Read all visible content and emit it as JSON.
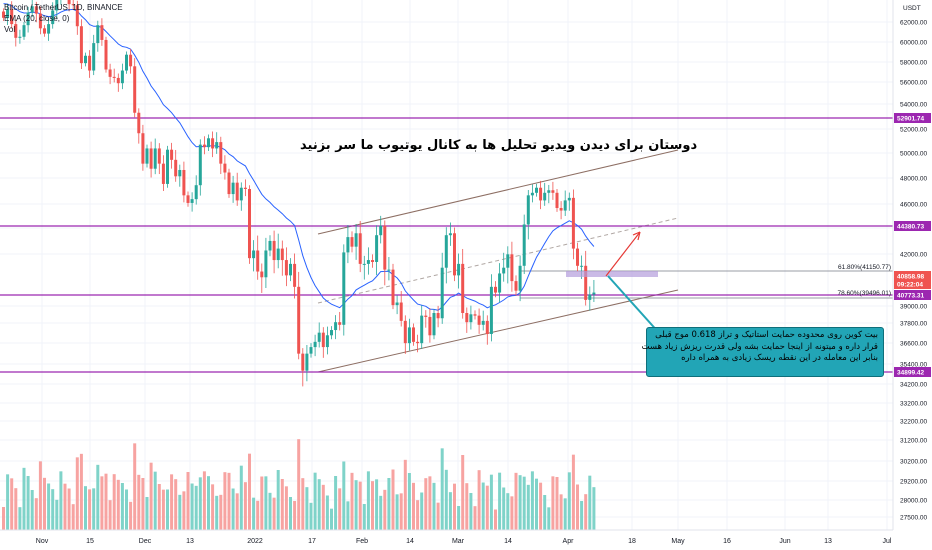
{
  "legend": {
    "symbol": "Bitcoin / TetherUS, 1D, BINANCE",
    "ma": "EMA (20, close, 0)",
    "vol": "Vol"
  },
  "annotation_title": "دوستان برای دیدن ویدیو تحلیل ها به کانال یوتیوب ما سر بزنید",
  "callout": {
    "lines": [
      "بیت کوین روی محدوده حمایت استاتیک و تراز 0.618 موج قبلی",
      "قرار داره و میتونه از اینجا حمایت بشه ولی قدرت ریزش زیاد هست",
      "بنابر این معامله در این نقطه ریسک زیادی به همراه داره"
    ]
  },
  "currency": "USDT",
  "colors": {
    "up": "#26a69a",
    "down": "#ef5350",
    "vol_up": "#7fd3c9",
    "vol_down": "#f7a3a1",
    "level": "#9c27b0",
    "ema": "#2962ff",
    "channel": "#8d6e63",
    "callout": "#22a5b6"
  },
  "chart_data": {
    "type": "candlestick",
    "yaxis_ticks": [
      "62000.00",
      "60000.00",
      "58000.00",
      "56000.00",
      "54000.00",
      "52000.00",
      "50000.00",
      "48000.00",
      "46000.00",
      "44000.00",
      "42000.00",
      "39000.00",
      "37800.00",
      "36600.00",
      "35400.00",
      "34200.00",
      "33200.00",
      "32200.00",
      "31200.00",
      "30200.00",
      "29200.00",
      "28000.00",
      "27500.00"
    ],
    "yaxis_tick_px_note": "",
    "xaxis_ticks": [
      "Nov",
      "15",
      "Dec",
      "13",
      "2022",
      "17",
      "Feb",
      "14",
      "Mar",
      "14",
      "Apr",
      "18",
      "May",
      "16",
      "Jun",
      "13",
      "Jul"
    ],
    "price_labels": [
      {
        "text": "52901.74",
        "color": "#9c27b0"
      },
      {
        "text": "44380.73",
        "color": "#9c27b0"
      },
      {
        "text": "40858.98",
        "color": "#ef5350"
      },
      {
        "text": "09:22:04",
        "color": "#ef5350"
      },
      {
        "text": "40773.31",
        "color": "#9c27b0"
      },
      {
        "text": "34899.42",
        "color": "#9c27b0"
      }
    ],
    "fib_labels": [
      "61.80%(41150.77)",
      "78.60%(39496.01)"
    ],
    "horizontal_levels": [
      52901.74,
      44380.73,
      40773.31,
      34899.42
    ],
    "last_price": 40858.98,
    "closes": [
      62400,
      63200,
      61800,
      60500,
      60600,
      61700,
      62900,
      63500,
      62800,
      61400,
      60900,
      61800,
      63100,
      64200,
      65000,
      64600,
      63700,
      63600,
      61600,
      58100,
      58800,
      57400,
      60000,
      61700,
      60300,
      57500,
      56800,
      56700,
      56200,
      57400,
      58900,
      57800,
      53400,
      51700,
      49300,
      50500,
      48900,
      50500,
      49300,
      47700,
      50400,
      49600,
      48300,
      48800,
      46800,
      46200,
      46500,
      47600,
      50800,
      50600,
      51300,
      50500,
      51000,
      49300,
      48600,
      46900,
      47800,
      46400,
      47400,
      47300,
      42700,
      43100,
      42000,
      41700,
      43100,
      43600,
      42600,
      43200,
      42600,
      41800,
      42400,
      41200,
      36300,
      35000,
      36300,
      36800,
      37200,
      37900,
      36800,
      37700,
      38100,
      38700,
      38500,
      43000,
      43800,
      43300,
      44000,
      42400,
      42400,
      42600,
      42500,
      43900,
      44400,
      42100,
      42100,
      40000,
      40200,
      38800,
      37100,
      38300,
      37200,
      37100,
      39200,
      39100,
      37700,
      39400,
      39000,
      42200,
      43900,
      44000,
      41800,
      42400,
      39400,
      38700,
      39300,
      39200,
      38500,
      38800,
      37800,
      41200,
      40900,
      41900,
      42200,
      42900,
      41500,
      41000,
      42300,
      44500,
      46800,
      47000,
      47400,
      46400,
      47000,
      47200,
      47000,
      45800,
      45600,
      46400,
      46600,
      43200,
      42300,
      42300,
      40400,
      40800,
      40900
    ]
  }
}
